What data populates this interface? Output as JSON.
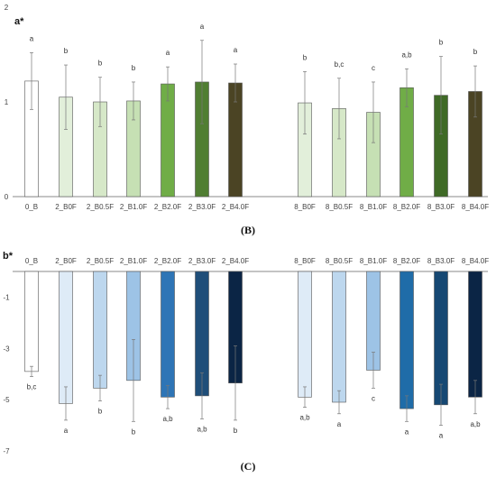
{
  "chart_data": [
    {
      "type": "bar",
      "panel": "(B)",
      "title": "a*",
      "ylim": [
        0,
        2
      ],
      "yticks": [
        "0",
        "1",
        "2"
      ],
      "grid": false,
      "categories": [
        "0_B",
        "2_B0F",
        "2_B0.5F",
        "2_B1.0F",
        "2_B2.0F",
        "2_B3.0F",
        "2_B4.0F",
        "8_B0F",
        "8_B0.5F",
        "8_B1.0F",
        "8_B2.0F",
        "8_B3.0F",
        "8_B4.0F"
      ],
      "values": [
        1.22,
        1.05,
        1.0,
        1.01,
        1.19,
        1.21,
        1.2,
        0.99,
        0.93,
        0.89,
        1.15,
        1.07,
        1.11
      ],
      "errors": [
        0.3,
        0.34,
        0.26,
        0.2,
        0.18,
        0.44,
        0.2,
        0.33,
        0.32,
        0.32,
        0.2,
        0.41,
        0.27
      ],
      "significance": [
        "a",
        "b",
        "b",
        "b",
        "a",
        "a",
        "a",
        "b",
        "b,c",
        "c",
        "a,b",
        "b",
        "b"
      ],
      "colors": [
        "#ffffff",
        "#e2efda",
        "#d6e8c8",
        "#c6e0b4",
        "#70ad47",
        "#507e32",
        "#4b4424",
        "#e2efda",
        "#d6e8c8",
        "#c6e0b4",
        "#70ad47",
        "#3f6a26",
        "#4b4424"
      ]
    },
    {
      "type": "bar",
      "panel": "(C)",
      "title": "b*",
      "ylim": [
        -7,
        0
      ],
      "yticks": [
        "-1",
        "-3",
        "-5",
        "-7"
      ],
      "grid": false,
      "categories": [
        "0_B",
        "2_B0F",
        "2_B0.5F",
        "2_B1.0F",
        "2_B2.0F",
        "2_B3.0F",
        "2_B4.0F",
        "8_B0F",
        "8_B0.5F",
        "8_B1.0F",
        "8_B2.0F",
        "8_B3.0F",
        "8_B4.0F"
      ],
      "values": [
        -3.9,
        -5.15,
        -4.55,
        -4.25,
        -4.9,
        -4.85,
        -4.35,
        -4.9,
        -5.1,
        -3.85,
        -5.35,
        -5.2,
        -4.9
      ],
      "errors": [
        0.2,
        0.65,
        0.5,
        1.6,
        0.45,
        0.9,
        1.45,
        0.4,
        0.45,
        0.7,
        0.5,
        0.8,
        0.65
      ],
      "significance": [
        "b,c",
        "a",
        "b",
        "b",
        "a,b",
        "a,b",
        "b",
        "a,b",
        "a",
        "c",
        "a",
        "a",
        "a,b"
      ],
      "colors": [
        "#ffffff",
        "#deebf7",
        "#bdd7ee",
        "#9dc3e6",
        "#2e75b6",
        "#1f4e79",
        "#0b2545",
        "#deebf7",
        "#bdd7ee",
        "#9dc3e6",
        "#1f6ca8",
        "#164873",
        "#0b2545"
      ]
    }
  ]
}
